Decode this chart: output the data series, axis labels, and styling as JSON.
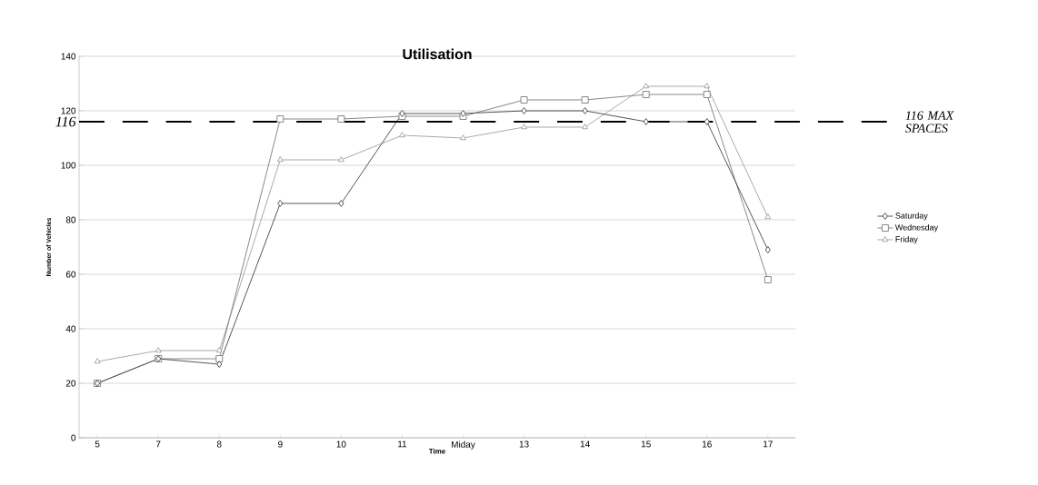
{
  "chart_data": {
    "type": "line",
    "title": "Utilisation",
    "xlabel": "Time",
    "ylabel": "Number of Vehicles",
    "categories": [
      "5",
      "7",
      "8",
      "9",
      "10",
      "11",
      "Miday",
      "13",
      "14",
      "15",
      "16",
      "17"
    ],
    "series": [
      {
        "name": "Saturday",
        "color": "#555555",
        "marker": "diamond",
        "values": [
          20,
          29,
          27,
          86,
          86,
          119,
          119,
          120,
          120,
          116,
          116,
          69
        ]
      },
      {
        "name": "Wednesday",
        "color": "#888888",
        "marker": "square",
        "values": [
          20,
          29,
          29,
          117,
          117,
          118,
          118,
          124,
          124,
          126,
          126,
          58
        ]
      },
      {
        "name": "Friday",
        "color": "#aaaaaa",
        "marker": "triangle",
        "values": [
          28,
          32,
          32,
          102,
          102,
          111,
          110,
          114,
          114,
          129,
          129,
          81
        ]
      }
    ],
    "ylim": [
      0,
      140
    ],
    "yticks": [
      0,
      20,
      40,
      60,
      80,
      100,
      120,
      140
    ],
    "grid": "y",
    "legend": "right",
    "ref_lines": [
      {
        "axis": "y",
        "value": 116,
        "label": "116",
        "color": "#000000",
        "line_style": "dashed"
      }
    ],
    "annotations": [
      "116 MAX SPACES"
    ]
  }
}
